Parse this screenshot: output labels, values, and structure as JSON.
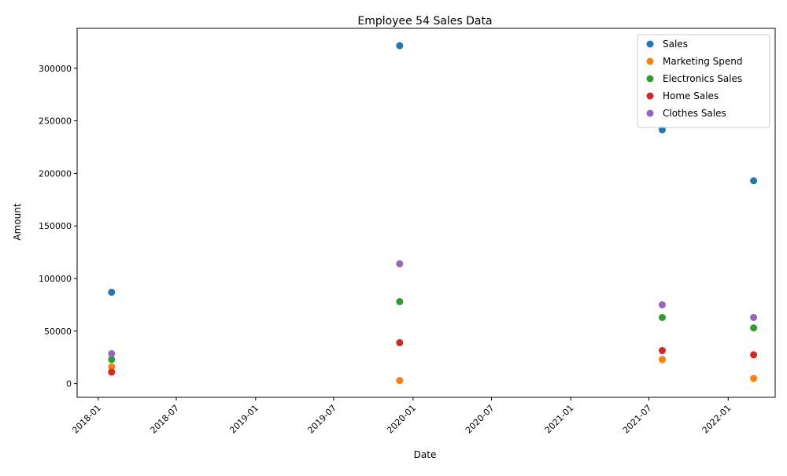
{
  "chart_data": {
    "type": "scatter",
    "title": "Employee 54 Sales Data",
    "xlabel": "Date",
    "ylabel": "Amount",
    "x": [
      "2018-02-01",
      "2019-12-01",
      "2021-08-01",
      "2022-03-01"
    ],
    "x_ticks": [
      "2018-01",
      "2018-07",
      "2019-01",
      "2019-07",
      "2020-01",
      "2020-07",
      "2021-01",
      "2021-07",
      "2022-01"
    ],
    "y_ticks": [
      0,
      50000,
      100000,
      150000,
      200000,
      250000,
      300000
    ],
    "ylim": [
      -13000,
      338000
    ],
    "xlim": [
      "2017-11-13",
      "2022-04-20"
    ],
    "legend_position": "top-right",
    "series": [
      {
        "name": "Sales",
        "color": "#1f77b4",
        "values": [
          87000,
          321500,
          241500,
          193000
        ]
      },
      {
        "name": "Marketing Spend",
        "color": "#ff7f0e",
        "values": [
          16000,
          3000,
          23000,
          5000
        ]
      },
      {
        "name": "Electronics Sales",
        "color": "#2ca02c",
        "values": [
          23000,
          78000,
          63000,
          53000
        ]
      },
      {
        "name": "Home Sales",
        "color": "#d62728",
        "values": [
          11000,
          39000,
          31500,
          27500
        ]
      },
      {
        "name": "Clothes Sales",
        "color": "#9467bd",
        "values": [
          28500,
          114000,
          75000,
          63000
        ]
      }
    ]
  }
}
